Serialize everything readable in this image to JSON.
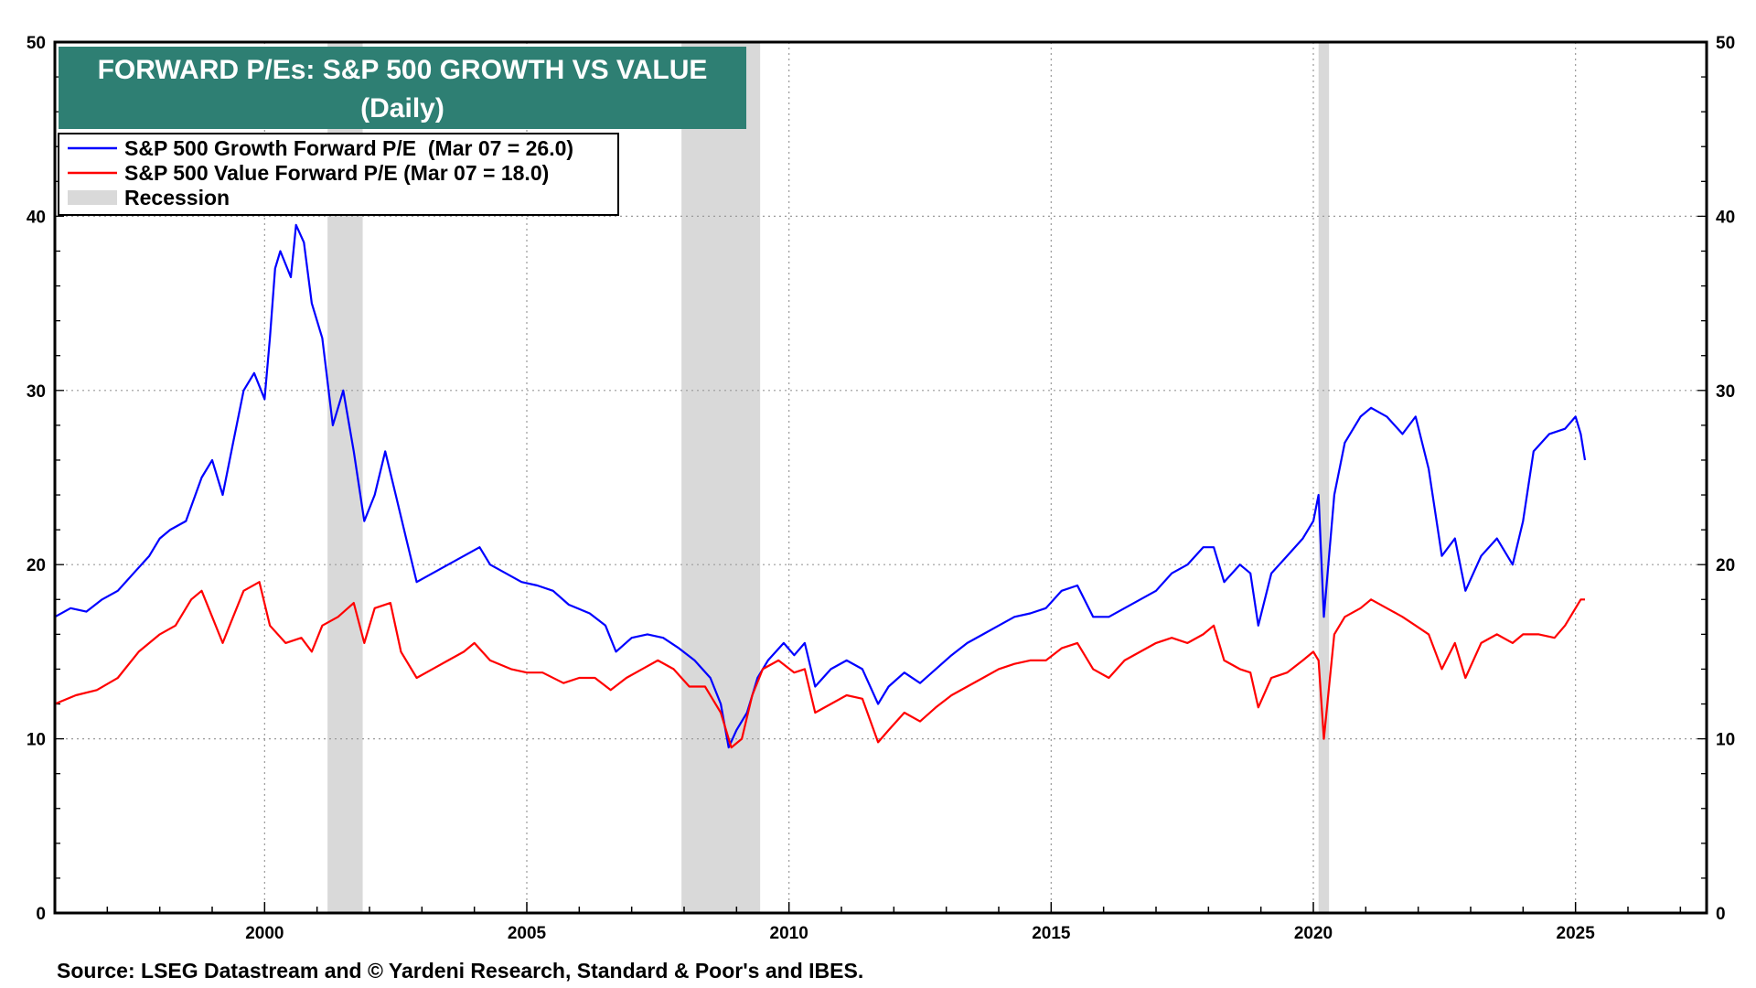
{
  "chart_data": {
    "type": "line",
    "title": "FORWARD P/Es: S&P 500 GROWTH VS VALUE",
    "subtitle": "(Daily)",
    "xlabel": "",
    "ylabel": "",
    "xlim": [
      1996.0,
      2027.5
    ],
    "ylim": [
      0,
      50
    ],
    "x_ticks": [
      2000,
      2005,
      2010,
      2015,
      2020,
      2025
    ],
    "y_ticks": [
      0,
      10,
      20,
      30,
      40,
      50
    ],
    "grid": true,
    "legend_position": "top-left",
    "colors": {
      "growth": "#0000ff",
      "value": "#ff0000",
      "recession": "#d9d9d9",
      "title_bg": "#2e7f73"
    },
    "legend": [
      {
        "label": "S&P 500 Growth Forward P/E  (Mar 07 = 26.0)",
        "type": "line",
        "color": "#0000ff"
      },
      {
        "label": "S&P 500 Value Forward P/E (Mar 07 = 18.0)",
        "type": "line",
        "color": "#ff0000"
      },
      {
        "label": "Recession",
        "type": "band",
        "color": "#d9d9d9"
      }
    ],
    "recessions": [
      [
        2001.2,
        2001.87
      ],
      [
        2007.95,
        2009.45
      ],
      [
        2020.1,
        2020.3
      ]
    ],
    "series": [
      {
        "name": "S&P 500 Growth Forward P/E",
        "color": "#0000ff",
        "points": [
          [
            1996.0,
            17.0
          ],
          [
            1996.3,
            17.5
          ],
          [
            1996.6,
            17.3
          ],
          [
            1996.9,
            18.0
          ],
          [
            1997.2,
            18.5
          ],
          [
            1997.5,
            19.5
          ],
          [
            1997.8,
            20.5
          ],
          [
            1998.0,
            21.5
          ],
          [
            1998.2,
            22.0
          ],
          [
            1998.5,
            22.5
          ],
          [
            1998.8,
            25.0
          ],
          [
            1999.0,
            26.0
          ],
          [
            1999.2,
            24.0
          ],
          [
            1999.4,
            27.0
          ],
          [
            1999.6,
            30.0
          ],
          [
            1999.8,
            31.0
          ],
          [
            2000.0,
            29.5
          ],
          [
            2000.1,
            33.0
          ],
          [
            2000.2,
            37.0
          ],
          [
            2000.3,
            38.0
          ],
          [
            2000.5,
            36.5
          ],
          [
            2000.6,
            39.5
          ],
          [
            2000.75,
            38.5
          ],
          [
            2000.9,
            35.0
          ],
          [
            2001.1,
            33.0
          ],
          [
            2001.3,
            28.0
          ],
          [
            2001.5,
            30.0
          ],
          [
            2001.7,
            26.5
          ],
          [
            2001.9,
            22.5
          ],
          [
            2002.1,
            24.0
          ],
          [
            2002.3,
            26.5
          ],
          [
            2002.5,
            24.0
          ],
          [
            2002.7,
            21.5
          ],
          [
            2002.9,
            19.0
          ],
          [
            2003.2,
            19.5
          ],
          [
            2003.5,
            20.0
          ],
          [
            2003.8,
            20.5
          ],
          [
            2004.1,
            21.0
          ],
          [
            2004.3,
            20.0
          ],
          [
            2004.6,
            19.5
          ],
          [
            2004.9,
            19.0
          ],
          [
            2005.2,
            18.8
          ],
          [
            2005.5,
            18.5
          ],
          [
            2005.8,
            17.7
          ],
          [
            2006.2,
            17.2
          ],
          [
            2006.5,
            16.5
          ],
          [
            2006.7,
            15.0
          ],
          [
            2007.0,
            15.8
          ],
          [
            2007.3,
            16.0
          ],
          [
            2007.6,
            15.8
          ],
          [
            2007.9,
            15.2
          ],
          [
            2008.2,
            14.5
          ],
          [
            2008.5,
            13.5
          ],
          [
            2008.7,
            12.0
          ],
          [
            2008.85,
            9.5
          ],
          [
            2009.0,
            10.5
          ],
          [
            2009.2,
            11.5
          ],
          [
            2009.4,
            13.5
          ],
          [
            2009.6,
            14.5
          ],
          [
            2009.9,
            15.5
          ],
          [
            2010.1,
            14.8
          ],
          [
            2010.3,
            15.5
          ],
          [
            2010.5,
            13.0
          ],
          [
            2010.8,
            14.0
          ],
          [
            2011.1,
            14.5
          ],
          [
            2011.4,
            14.0
          ],
          [
            2011.7,
            12.0
          ],
          [
            2011.9,
            13.0
          ],
          [
            2012.2,
            13.8
          ],
          [
            2012.5,
            13.2
          ],
          [
            2012.8,
            14.0
          ],
          [
            2013.1,
            14.8
          ],
          [
            2013.4,
            15.5
          ],
          [
            2013.7,
            16.0
          ],
          [
            2014.0,
            16.5
          ],
          [
            2014.3,
            17.0
          ],
          [
            2014.6,
            17.2
          ],
          [
            2014.9,
            17.5
          ],
          [
            2015.2,
            18.5
          ],
          [
            2015.5,
            18.8
          ],
          [
            2015.8,
            17.0
          ],
          [
            2016.1,
            17.0
          ],
          [
            2016.4,
            17.5
          ],
          [
            2016.7,
            18.0
          ],
          [
            2017.0,
            18.5
          ],
          [
            2017.3,
            19.5
          ],
          [
            2017.6,
            20.0
          ],
          [
            2017.9,
            21.0
          ],
          [
            2018.1,
            21.0
          ],
          [
            2018.3,
            19.0
          ],
          [
            2018.6,
            20.0
          ],
          [
            2018.8,
            19.5
          ],
          [
            2018.95,
            16.5
          ],
          [
            2019.2,
            19.5
          ],
          [
            2019.5,
            20.5
          ],
          [
            2019.8,
            21.5
          ],
          [
            2020.0,
            22.5
          ],
          [
            2020.1,
            24.0
          ],
          [
            2020.2,
            17.0
          ],
          [
            2020.4,
            24.0
          ],
          [
            2020.6,
            27.0
          ],
          [
            2020.9,
            28.5
          ],
          [
            2021.1,
            29.0
          ],
          [
            2021.4,
            28.5
          ],
          [
            2021.7,
            27.5
          ],
          [
            2021.95,
            28.5
          ],
          [
            2022.2,
            25.5
          ],
          [
            2022.45,
            20.5
          ],
          [
            2022.7,
            21.5
          ],
          [
            2022.9,
            18.5
          ],
          [
            2023.2,
            20.5
          ],
          [
            2023.5,
            21.5
          ],
          [
            2023.8,
            20.0
          ],
          [
            2024.0,
            22.5
          ],
          [
            2024.2,
            26.5
          ],
          [
            2024.5,
            27.5
          ],
          [
            2024.8,
            27.8
          ],
          [
            2025.0,
            28.5
          ],
          [
            2025.1,
            27.5
          ],
          [
            2025.18,
            26.0
          ]
        ]
      },
      {
        "name": "S&P 500 Value Forward P/E",
        "color": "#ff0000",
        "points": [
          [
            1996.0,
            12.0
          ],
          [
            1996.4,
            12.5
          ],
          [
            1996.8,
            12.8
          ],
          [
            1997.2,
            13.5
          ],
          [
            1997.6,
            15.0
          ],
          [
            1998.0,
            16.0
          ],
          [
            1998.3,
            16.5
          ],
          [
            1998.6,
            18.0
          ],
          [
            1998.8,
            18.5
          ],
          [
            1999.0,
            17.0
          ],
          [
            1999.2,
            15.5
          ],
          [
            1999.4,
            17.0
          ],
          [
            1999.6,
            18.5
          ],
          [
            1999.9,
            19.0
          ],
          [
            2000.1,
            16.5
          ],
          [
            2000.4,
            15.5
          ],
          [
            2000.7,
            15.8
          ],
          [
            2000.9,
            15.0
          ],
          [
            2001.1,
            16.5
          ],
          [
            2001.4,
            17.0
          ],
          [
            2001.7,
            17.8
          ],
          [
            2001.9,
            15.5
          ],
          [
            2002.1,
            17.5
          ],
          [
            2002.4,
            17.8
          ],
          [
            2002.6,
            15.0
          ],
          [
            2002.9,
            13.5
          ],
          [
            2003.2,
            14.0
          ],
          [
            2003.5,
            14.5
          ],
          [
            2003.8,
            15.0
          ],
          [
            2004.0,
            15.5
          ],
          [
            2004.3,
            14.5
          ],
          [
            2004.7,
            14.0
          ],
          [
            2005.0,
            13.8
          ],
          [
            2005.3,
            13.8
          ],
          [
            2005.7,
            13.2
          ],
          [
            2006.0,
            13.5
          ],
          [
            2006.3,
            13.5
          ],
          [
            2006.6,
            12.8
          ],
          [
            2006.9,
            13.5
          ],
          [
            2007.2,
            14.0
          ],
          [
            2007.5,
            14.5
          ],
          [
            2007.8,
            14.0
          ],
          [
            2008.1,
            13.0
          ],
          [
            2008.4,
            13.0
          ],
          [
            2008.7,
            11.5
          ],
          [
            2008.9,
            9.5
          ],
          [
            2009.1,
            10.0
          ],
          [
            2009.3,
            12.5
          ],
          [
            2009.5,
            14.0
          ],
          [
            2009.8,
            14.5
          ],
          [
            2010.1,
            13.8
          ],
          [
            2010.3,
            14.0
          ],
          [
            2010.5,
            11.5
          ],
          [
            2010.8,
            12.0
          ],
          [
            2011.1,
            12.5
          ],
          [
            2011.4,
            12.3
          ],
          [
            2011.7,
            9.8
          ],
          [
            2011.9,
            10.5
          ],
          [
            2012.2,
            11.5
          ],
          [
            2012.5,
            11.0
          ],
          [
            2012.8,
            11.8
          ],
          [
            2013.1,
            12.5
          ],
          [
            2013.4,
            13.0
          ],
          [
            2013.7,
            13.5
          ],
          [
            2014.0,
            14.0
          ],
          [
            2014.3,
            14.3
          ],
          [
            2014.6,
            14.5
          ],
          [
            2014.9,
            14.5
          ],
          [
            2015.2,
            15.2
          ],
          [
            2015.5,
            15.5
          ],
          [
            2015.8,
            14.0
          ],
          [
            2016.1,
            13.5
          ],
          [
            2016.4,
            14.5
          ],
          [
            2016.7,
            15.0
          ],
          [
            2017.0,
            15.5
          ],
          [
            2017.3,
            15.8
          ],
          [
            2017.6,
            15.5
          ],
          [
            2017.9,
            16.0
          ],
          [
            2018.1,
            16.5
          ],
          [
            2018.3,
            14.5
          ],
          [
            2018.6,
            14.0
          ],
          [
            2018.8,
            13.8
          ],
          [
            2018.95,
            11.8
          ],
          [
            2019.2,
            13.5
          ],
          [
            2019.5,
            13.8
          ],
          [
            2019.8,
            14.5
          ],
          [
            2020.0,
            15.0
          ],
          [
            2020.1,
            14.5
          ],
          [
            2020.2,
            10.0
          ],
          [
            2020.4,
            16.0
          ],
          [
            2020.6,
            17.0
          ],
          [
            2020.9,
            17.5
          ],
          [
            2021.1,
            18.0
          ],
          [
            2021.4,
            17.5
          ],
          [
            2021.7,
            17.0
          ],
          [
            2021.95,
            16.5
          ],
          [
            2022.2,
            16.0
          ],
          [
            2022.45,
            14.0
          ],
          [
            2022.7,
            15.5
          ],
          [
            2022.9,
            13.5
          ],
          [
            2023.2,
            15.5
          ],
          [
            2023.5,
            16.0
          ],
          [
            2023.8,
            15.5
          ],
          [
            2024.0,
            16.0
          ],
          [
            2024.3,
            16.0
          ],
          [
            2024.6,
            15.8
          ],
          [
            2024.8,
            16.5
          ],
          [
            2025.0,
            17.5
          ],
          [
            2025.1,
            18.0
          ],
          [
            2025.18,
            18.0
          ]
        ]
      }
    ],
    "source": "Source: LSEG Datastream and © Yardeni Research, Standard & Poor's and IBES."
  }
}
